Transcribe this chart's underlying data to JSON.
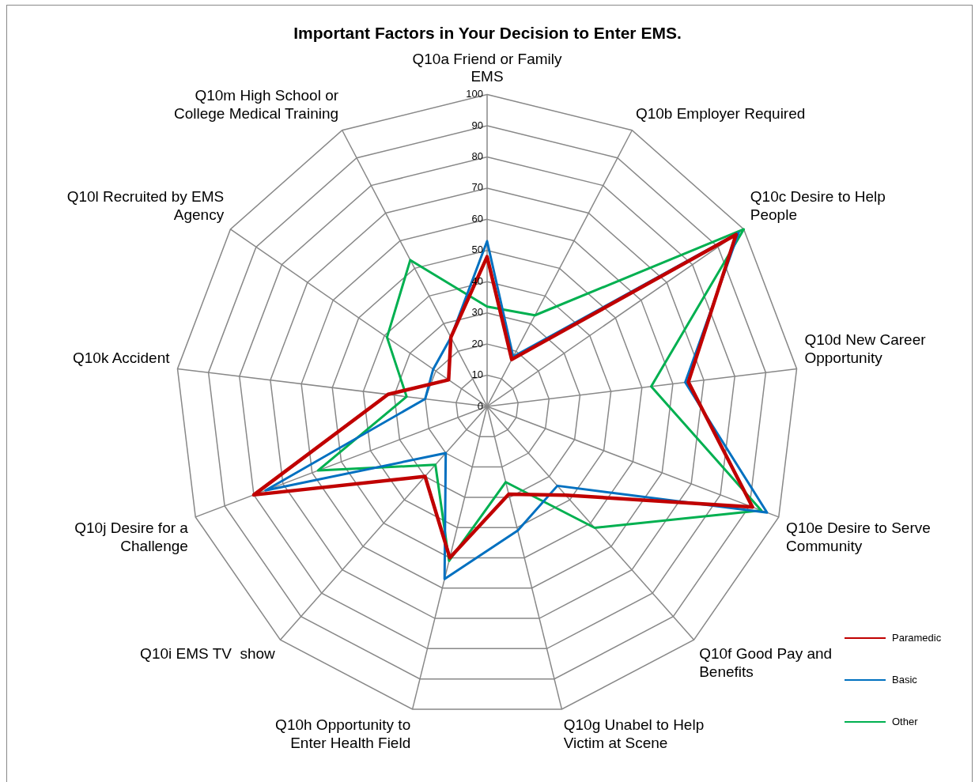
{
  "chart_data": {
    "type": "radar",
    "title": "Important Factors in Your Decision  to Enter EMS.",
    "categories": [
      "Q10a Friend or Family EMS",
      "Q10b Employer Required",
      "Q10c Desire to Help People",
      "Q10d New Career Opportunity",
      "Q10e Desire to Serve Community",
      "Q10f Good Pay and Benefits",
      "Q10g Unabel to Help Victim at Scene",
      "Q10h Opportunity to Enter Health Field",
      "Q10i EMS TV  show",
      "Q10j Desire for a Challenge",
      "Q10k Accident",
      "Q10l Recruited by EMS Agency",
      "Q10m High School or College Medical Training"
    ],
    "series": [
      {
        "name": "Paramedic",
        "color": "#c00000",
        "values": [
          48,
          17,
          97,
          65,
          91,
          38,
          29,
          50,
          30,
          80,
          32,
          15,
          25
        ]
      },
      {
        "name": "Basic",
        "color": "#0070c0",
        "values": [
          53,
          18,
          98,
          64,
          96,
          34,
          41,
          57,
          20,
          76,
          20,
          21,
          25
        ]
      },
      {
        "name": "Other",
        "color": "#00b050",
        "values": [
          32,
          33,
          100,
          53,
          94,
          52,
          25,
          51,
          25,
          58,
          26,
          39,
          53
        ]
      }
    ],
    "ylim": [
      0,
      100
    ],
    "yticks": [
      0,
      10,
      20,
      30,
      40,
      50,
      60,
      70,
      80,
      90,
      100
    ],
    "grid": true,
    "legend": "bottom right"
  }
}
